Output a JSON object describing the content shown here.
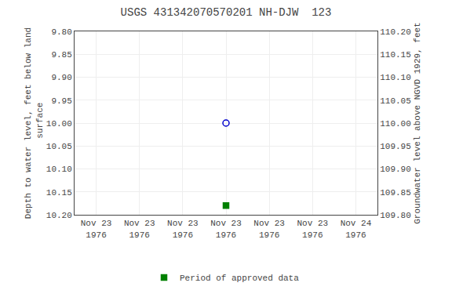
{
  "chart_data": {
    "type": "scatter",
    "title": "USGS 431342070570201 NH-DJW  123",
    "y_label": "Depth to water level, feet below land\n surface",
    "y2_label": "Groundwater level above NGVD 1929, feet",
    "categories": [
      "Nov 23\n1976",
      "Nov 23\n1976",
      "Nov 23\n1976",
      "Nov 23\n1976",
      "Nov 23\n1976",
      "Nov 23\n1976",
      "Nov 24\n1976"
    ],
    "series": [
      {
        "color": "#0000cc",
        "marker": "circle-open",
        "values": [
          null,
          null,
          null,
          10.0,
          null,
          null,
          null
        ]
      },
      {
        "name": "Period of approved data",
        "color": "#008000",
        "marker": "square",
        "values": [
          null,
          null,
          null,
          10.18,
          null,
          null,
          null
        ]
      }
    ],
    "ylim": [
      10.2,
      9.8
    ],
    "yticks": [
      {
        "value": 9.8,
        "label": "9.80"
      },
      {
        "value": 9.85,
        "label": "9.85"
      },
      {
        "value": 9.9,
        "label": "9.90"
      },
      {
        "value": 9.95,
        "label": "9.95"
      },
      {
        "value": 10.0,
        "label": "10.00"
      },
      {
        "value": 10.05,
        "label": "10.05"
      },
      {
        "value": 10.1,
        "label": "10.10"
      },
      {
        "value": 10.15,
        "label": "10.15"
      },
      {
        "value": 10.2,
        "label": "10.20"
      }
    ],
    "y2lim": [
      109.8,
      110.2
    ],
    "y2ticks": [
      {
        "value": 110.2,
        "label": "110.20"
      },
      {
        "value": 110.15,
        "label": "110.15"
      },
      {
        "value": 110.1,
        "label": "110.10"
      },
      {
        "value": 110.05,
        "label": "110.05"
      },
      {
        "value": 110.0,
        "label": "110.00"
      },
      {
        "value": 109.95,
        "label": "109.95"
      },
      {
        "value": 109.9,
        "label": "109.90"
      },
      {
        "value": 109.85,
        "label": "109.85"
      },
      {
        "value": 109.8,
        "label": "109.80"
      }
    ],
    "grid": true,
    "legend": "bottom"
  }
}
